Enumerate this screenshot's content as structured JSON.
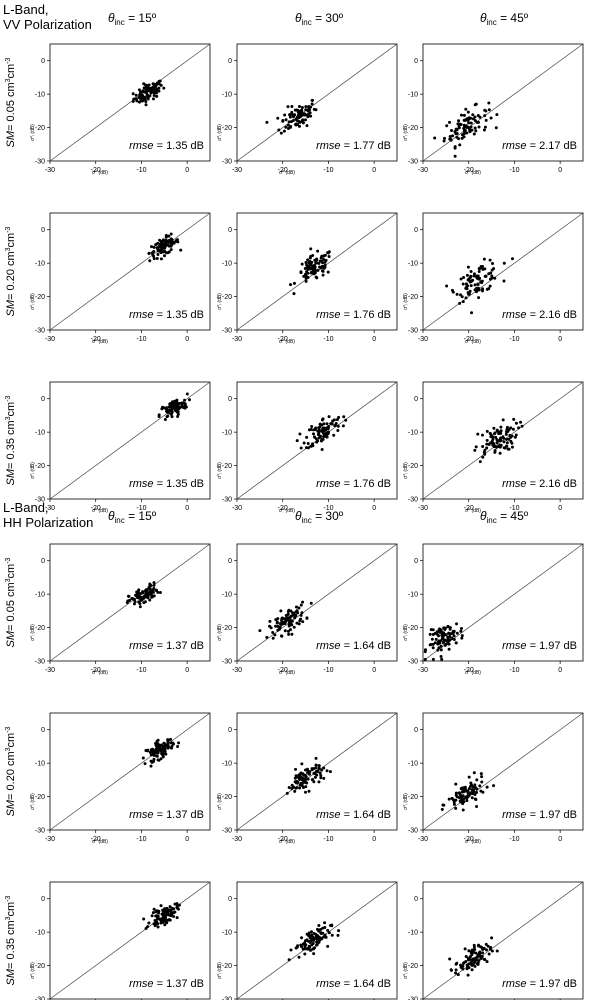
{
  "sections": [
    {
      "title_line1": "L-Band,",
      "title_line2": "VV Polarization"
    },
    {
      "title_line1": "L-Band,",
      "title_line2": "HH Polarization"
    }
  ],
  "incidence_angle_headers": [
    {
      "symbol": "θ",
      "subscript": "inc",
      "value": " = 15º"
    },
    {
      "symbol": "θ",
      "subscript": "inc",
      "value": " = 30º"
    },
    {
      "symbol": "θ",
      "subscript": "inc",
      "value": " = 45º"
    }
  ],
  "soil_moisture_row_labels": [
    {
      "prefix": "SM",
      "text": "= 0.05 cm",
      "sup1": "3",
      "mid": "cm",
      "sup2": "-3"
    },
    {
      "prefix": "SM",
      "text": "= 0.20 cm",
      "sup1": "3",
      "mid": "cm",
      "sup2": "-3"
    },
    {
      "prefix": "SM",
      "text": "= 0.35 cm",
      "sup1": "3",
      "mid": "cm",
      "sup2": "-3"
    }
  ],
  "axis_labels": {
    "x": "σ⁰ (dB)",
    "y": "σ⁰ᵢ (dB)"
  },
  "rmse_label_italic": "rmse",
  "chart_data": {
    "type": "scatter",
    "axis_range": [
      -30,
      5
    ],
    "tick_values": [
      -30,
      -20,
      -10,
      0
    ],
    "identity_line": true,
    "grid": false,
    "panels": [
      {
        "polarization": "VV",
        "angle": 15,
        "sm": 0.05,
        "rmse": " = 1.35 dB",
        "center": [
          -8.5,
          -9.5
        ],
        "spread": [
          1.6,
          1.6
        ]
      },
      {
        "polarization": "VV",
        "angle": 30,
        "sm": 0.05,
        "rmse": " = 1.77 dB",
        "center": [
          -16.5,
          -16.5
        ],
        "spread": [
          2.0,
          2.4
        ]
      },
      {
        "polarization": "VV",
        "angle": 45,
        "sm": 0.05,
        "rmse": " = 2.17 dB",
        "center": [
          -20.5,
          -19.5
        ],
        "spread": [
          2.4,
          2.8
        ]
      },
      {
        "polarization": "VV",
        "angle": 15,
        "sm": 0.2,
        "rmse": " = 1.35 dB",
        "center": [
          -5.0,
          -5.0
        ],
        "spread": [
          1.6,
          1.6
        ]
      },
      {
        "polarization": "VV",
        "angle": 30,
        "sm": 0.2,
        "rmse": " = 1.76 dB",
        "center": [
          -13.0,
          -11.5
        ],
        "spread": [
          2.0,
          2.4
        ]
      },
      {
        "polarization": "VV",
        "angle": 45,
        "sm": 0.2,
        "rmse": " = 2.16 dB",
        "center": [
          -18.0,
          -15.0
        ],
        "spread": [
          2.4,
          2.8
        ]
      },
      {
        "polarization": "VV",
        "angle": 15,
        "sm": 0.35,
        "rmse": " = 1.35 dB",
        "center": [
          -3.0,
          -3.0
        ],
        "spread": [
          1.5,
          1.6
        ]
      },
      {
        "polarization": "VV",
        "angle": 30,
        "sm": 0.35,
        "rmse": " = 1.76 dB",
        "center": [
          -11.0,
          -9.5
        ],
        "spread": [
          2.0,
          2.4
        ]
      },
      {
        "polarization": "VV",
        "angle": 45,
        "sm": 0.35,
        "rmse": " = 2.16 dB",
        "center": [
          -14.0,
          -12.5
        ],
        "spread": [
          2.4,
          2.8
        ]
      },
      {
        "polarization": "HH",
        "angle": 15,
        "sm": 0.05,
        "rmse": " = 1.37 dB",
        "center": [
          -9.5,
          -10.5
        ],
        "spread": [
          1.6,
          1.6
        ]
      },
      {
        "polarization": "HH",
        "angle": 30,
        "sm": 0.05,
        "rmse": " = 1.64 dB",
        "center": [
          -19.0,
          -18.0
        ],
        "spread": [
          2.0,
          2.2
        ]
      },
      {
        "polarization": "HH",
        "angle": 45,
        "sm": 0.05,
        "rmse": " = 1.97 dB",
        "center": [
          -25.0,
          -23.0
        ],
        "spread": [
          2.0,
          2.4
        ]
      },
      {
        "polarization": "HH",
        "angle": 15,
        "sm": 0.2,
        "rmse": " = 1.37 dB",
        "center": [
          -6.0,
          -6.0
        ],
        "spread": [
          1.5,
          1.6
        ]
      },
      {
        "polarization": "HH",
        "angle": 30,
        "sm": 0.2,
        "rmse": " = 1.64 dB",
        "center": [
          -15.0,
          -14.5
        ],
        "spread": [
          2.0,
          2.2
        ]
      },
      {
        "polarization": "HH",
        "angle": 45,
        "sm": 0.2,
        "rmse": " = 1.97 dB",
        "center": [
          -20.5,
          -19.5
        ],
        "spread": [
          2.0,
          2.4
        ]
      },
      {
        "polarization": "HH",
        "angle": 15,
        "sm": 0.35,
        "rmse": " = 1.37 dB",
        "center": [
          -5.0,
          -5.0
        ],
        "spread": [
          1.5,
          1.6
        ]
      },
      {
        "polarization": "HH",
        "angle": 30,
        "sm": 0.35,
        "rmse": " = 1.64 dB",
        "center": [
          -13.5,
          -12.5
        ],
        "spread": [
          2.0,
          2.2
        ]
      },
      {
        "polarization": "HH",
        "angle": 45,
        "sm": 0.35,
        "rmse": " = 1.97 dB",
        "center": [
          -19.0,
          -18.0
        ],
        "spread": [
          2.0,
          2.4
        ]
      }
    ]
  }
}
